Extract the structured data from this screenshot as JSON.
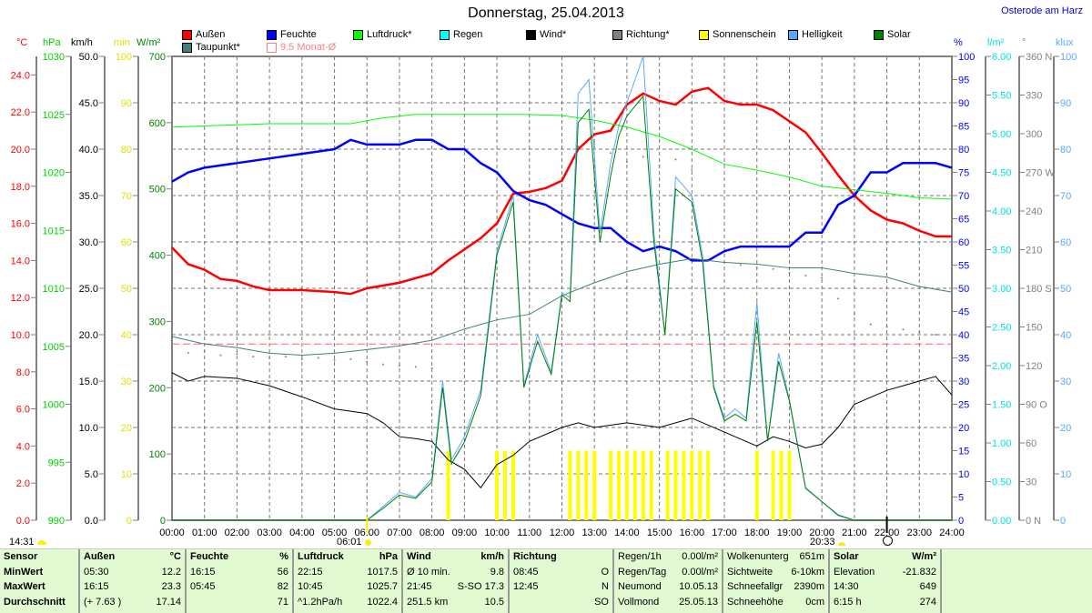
{
  "header": {
    "title": "Donnerstag, 25.04.2013",
    "location": "Osterode am Harz"
  },
  "legend": [
    {
      "label": "Außen",
      "color": "#ff0000"
    },
    {
      "label": "Feuchte",
      "color": "#0000ff"
    },
    {
      "label": "Luftdruck*",
      "color": "#00ff00"
    },
    {
      "label": "Regen",
      "color": "#00ffff"
    },
    {
      "label": "Wind*",
      "color": "#000000"
    },
    {
      "label": "Richtung*",
      "color": "#808080"
    },
    {
      "label": "Sonnenschein",
      "color": "#ffff00"
    },
    {
      "label": "Helligkeit",
      "color": "#55aaff"
    },
    {
      "label": "Solar",
      "color": "#008000"
    },
    {
      "label": "Taupunkt*",
      "color": "#408080"
    },
    {
      "label": "9.5 Monat-Ø",
      "color": "#ff8080"
    }
  ],
  "markers": {
    "now": "14:31",
    "sunrise": "06:01",
    "sunset": "20:33"
  },
  "chart_data": {
    "type": "line",
    "title": "Donnerstag, 25.04.2013",
    "xlabel": "",
    "xrange": [
      0,
      24
    ],
    "xticks": [
      "00:00",
      "01:00",
      "02:00",
      "03:00",
      "04:00",
      "05:00",
      "06:00",
      "07:00",
      "08:00",
      "09:00",
      "10:00",
      "11:00",
      "12:00",
      "13:00",
      "14:00",
      "15:00",
      "16:00",
      "17:00",
      "18:00",
      "19:00",
      "20:00",
      "21:00",
      "22:00",
      "23:00",
      "24:00"
    ],
    "grid": true,
    "axes": {
      "temp": {
        "unit": "°C",
        "range": [
          0,
          25
        ],
        "step": 2,
        "max_tick": 24,
        "decimals": 1,
        "color": "#ff0000",
        "side": "left"
      },
      "press": {
        "unit": "hPa",
        "range": [
          990,
          1030
        ],
        "step": 5,
        "max_tick": 1030,
        "decimals": 0,
        "color": "#00d000",
        "side": "left"
      },
      "wind": {
        "unit": "km/h",
        "range": [
          0,
          50
        ],
        "step": 5,
        "max_tick": 50,
        "decimals": 1,
        "color": "#000000",
        "side": "left"
      },
      "sun": {
        "unit": "min",
        "range": [
          0,
          100
        ],
        "step": 10,
        "max_tick": 100,
        "decimals": 0,
        "color": "#e0e000",
        "side": "left"
      },
      "solar": {
        "unit": "W/m²",
        "range": [
          0,
          700
        ],
        "step": 100,
        "max_tick": 700,
        "decimals": 0,
        "color": "#008000",
        "side": "left"
      },
      "hum": {
        "unit": "%",
        "range": [
          0,
          100
        ],
        "step": 5,
        "max_tick": 100,
        "decimals": 0,
        "color": "#0000ff",
        "side": "right"
      },
      "rain": {
        "unit": "l/m²",
        "range": [
          0,
          6
        ],
        "step": 0.5,
        "max_tick": 6,
        "decimals": 2,
        "color": "#00e0e0",
        "side": "right"
      },
      "dir": {
        "unit": "°",
        "range": [
          0,
          360
        ],
        "step": 30,
        "max_tick": 360,
        "decimals": 0,
        "color": "#808080",
        "side": "right",
        "compass": {
          "0": "N",
          "90": "O",
          "180": "S",
          "270": "W",
          "360": "N"
        }
      },
      "lux": {
        "unit": "klux",
        "range": [
          0,
          100
        ],
        "step": 10,
        "max_tick": 100,
        "decimals": 0,
        "color": "#55aaff",
        "side": "right"
      }
    },
    "monthly_avg_temp": 9.5,
    "series": [
      {
        "name": "Außen",
        "axis": "temp",
        "color": "#ff0000",
        "width": 2.5,
        "x": [
          0,
          0.5,
          1,
          1.5,
          2,
          2.5,
          3,
          4,
          5,
          5.5,
          6,
          7,
          8,
          8.5,
          9,
          9.5,
          10,
          10.5,
          11,
          11.5,
          12,
          12.5,
          13,
          13.5,
          14,
          14.5,
          15,
          15.5,
          16,
          16.5,
          17,
          17.5,
          18,
          18.5,
          19,
          19.5,
          20,
          20.5,
          21,
          21.5,
          22,
          22.5,
          23,
          23.5,
          24
        ],
        "y": [
          14.7,
          13.8,
          13.5,
          13.0,
          12.9,
          12.6,
          12.4,
          12.4,
          12.3,
          12.2,
          12.5,
          12.8,
          13.3,
          14.0,
          14.6,
          15.2,
          16.0,
          17.6,
          17.7,
          17.9,
          18.3,
          20.0,
          20.8,
          21.0,
          22.4,
          23.0,
          22.6,
          22.4,
          23.1,
          23.3,
          22.6,
          22.4,
          22.4,
          22.1,
          21.5,
          20.9,
          19.8,
          18.6,
          17.5,
          16.7,
          16.2,
          16.0,
          15.6,
          15.3,
          15.3
        ]
      },
      {
        "name": "Feuchte",
        "axis": "hum",
        "color": "#0000ff",
        "width": 2.5,
        "x": [
          0,
          0.5,
          1,
          2,
          3,
          4,
          5,
          5.5,
          6,
          7,
          7.5,
          8,
          8.5,
          9,
          9.5,
          10,
          10.5,
          11,
          11.5,
          12,
          12.5,
          13,
          13.5,
          14,
          14.5,
          15,
          15.5,
          16,
          16.5,
          17,
          17.5,
          18,
          19,
          19.5,
          20,
          20.5,
          21,
          21.5,
          22,
          22.5,
          23,
          23.5,
          24
        ],
        "y": [
          73,
          75,
          76,
          77,
          78,
          79,
          80,
          82,
          81,
          81,
          82,
          82,
          80,
          80,
          77,
          75,
          71,
          69,
          68,
          66,
          64,
          63,
          63,
          60,
          58,
          59,
          58,
          56,
          56,
          58,
          59,
          59,
          59,
          62,
          62,
          68,
          70,
          75,
          75,
          77,
          77,
          77,
          76
        ]
      },
      {
        "name": "Luftdruck*",
        "axis": "press",
        "color": "#00ff00",
        "width": 1,
        "x": [
          0,
          3,
          5.5,
          6.5,
          7.5,
          8.5,
          10.75,
          12,
          13,
          14,
          15,
          16,
          17,
          18,
          19,
          20,
          21,
          22,
          23,
          24
        ],
        "y": [
          1023.9,
          1024.2,
          1024.2,
          1024.7,
          1025.0,
          1025.0,
          1025.0,
          1024.9,
          1024.5,
          1023.9,
          1023.1,
          1022.0,
          1020.7,
          1020.2,
          1019.6,
          1018.8,
          1018.5,
          1018.2,
          1017.8,
          1017.7
        ]
      },
      {
        "name": "Taupunkt*",
        "axis": "temp",
        "color": "#408080",
        "width": 1,
        "x": [
          0,
          1,
          2,
          3,
          4,
          5,
          6,
          7,
          8,
          9,
          10,
          11,
          12,
          13,
          14,
          15,
          16,
          17,
          18,
          19,
          20,
          21,
          22,
          23,
          24
        ],
        "y": [
          9.9,
          9.5,
          9.3,
          9.0,
          8.9,
          9.0,
          9.2,
          9.4,
          9.7,
          10.3,
          10.8,
          11.1,
          12.1,
          12.8,
          13.4,
          13.8,
          14.1,
          13.9,
          13.8,
          13.6,
          13.6,
          13.3,
          13.1,
          12.6,
          12.3
        ]
      },
      {
        "name": "Wind*",
        "axis": "wind",
        "color": "#000000",
        "width": 1,
        "x": [
          0,
          0.5,
          1,
          2,
          3,
          4,
          5,
          6,
          6.5,
          7,
          7.5,
          8,
          8.5,
          9,
          9.5,
          10,
          10.5,
          11,
          12,
          12.5,
          13,
          14,
          15,
          16,
          17,
          18,
          18.5,
          19,
          19.5,
          20,
          20.5,
          21,
          22,
          22.5,
          23,
          23.5,
          24
        ],
        "y": [
          15.9,
          15.0,
          15.5,
          15.3,
          14.5,
          13.3,
          12.0,
          11.5,
          10.5,
          9.0,
          8.8,
          8.5,
          6.5,
          5.5,
          3.5,
          6.0,
          7.0,
          8.5,
          10.0,
          10.5,
          10.0,
          10.5,
          10.0,
          11.0,
          9.5,
          8.0,
          9.0,
          8.5,
          7.8,
          8.2,
          10.0,
          12.5,
          14.0,
          14.5,
          15.0,
          15.5,
          13.5
        ]
      },
      {
        "name": "Helligkeit",
        "axis": "lux",
        "color": "#55aaff",
        "width": 1,
        "x": [
          0,
          6,
          6.5,
          7,
          7.5,
          8,
          8.33,
          8.6,
          9,
          9.5,
          10,
          10.5,
          10.83,
          11.25,
          11.67,
          12,
          12.25,
          12.5,
          12.83,
          13.17,
          13.5,
          13.75,
          14,
          14.5,
          14.83,
          15.17,
          15.5,
          16,
          16.33,
          16.67,
          17,
          17.33,
          17.67,
          18,
          18.33,
          18.67,
          19,
          19.5,
          20,
          20.5,
          21,
          24
        ],
        "y": [
          0,
          0,
          3,
          6,
          5,
          9,
          30,
          13,
          18,
          28,
          58,
          70,
          29,
          40,
          32,
          49,
          48,
          92,
          95,
          62,
          77,
          85,
          90,
          100,
          62,
          40,
          74,
          70,
          57,
          29,
          22,
          24,
          22,
          47,
          17,
          36,
          26,
          7,
          4,
          1,
          0,
          0
        ]
      },
      {
        "name": "Solar",
        "axis": "solar",
        "color": "#008000",
        "width": 1,
        "x": [
          0,
          6,
          6.5,
          7,
          7.5,
          8,
          8.33,
          8.6,
          9,
          9.5,
          10,
          10.5,
          10.83,
          11.25,
          11.67,
          12,
          12.25,
          12.5,
          12.83,
          13.17,
          13.5,
          13.75,
          14,
          14.5,
          14.83,
          15.17,
          15.5,
          16,
          16.33,
          16.67,
          17,
          17.33,
          17.67,
          18,
          18.33,
          18.67,
          19,
          19.5,
          20,
          20.5,
          21,
          24
        ],
        "y": [
          0,
          0,
          18,
          38,
          33,
          58,
          200,
          85,
          118,
          188,
          400,
          480,
          200,
          270,
          220,
          340,
          330,
          600,
          620,
          420,
          520,
          580,
          610,
          640,
          420,
          280,
          500,
          480,
          390,
          200,
          150,
          160,
          150,
          300,
          120,
          240,
          180,
          48,
          28,
          8,
          0,
          0
        ]
      }
    ],
    "direction": {
      "name": "Richtung*",
      "axis": "dir",
      "color": "#808080",
      "x": [
        0,
        0.5,
        1,
        1.5,
        2,
        2.5,
        3,
        3.5,
        4,
        4.5,
        5,
        5.5,
        6,
        6.5,
        7,
        7.5,
        8,
        12.5,
        13,
        13.5,
        14,
        14.5,
        15,
        15.5,
        16,
        17,
        17.5,
        18,
        18.5,
        19,
        19.5,
        20,
        20.5,
        21,
        21.5,
        22,
        22.5,
        23,
        23.5,
        24
      ],
      "y": [
        133,
        130,
        131,
        128,
        129,
        127,
        126,
        127,
        125,
        126,
        124,
        125,
        123,
        121,
        120,
        119,
        118,
        290,
        292,
        285,
        278,
        282,
        275,
        280,
        272,
        200,
        198,
        196,
        195,
        192,
        190,
        188,
        172,
        160,
        152,
        150,
        148,
        146,
        144,
        143
      ]
    },
    "sunshine": {
      "name": "Sonnenschein",
      "axis": "sun",
      "color": "#ffff00",
      "minutes": 15,
      "x": [
        8.5,
        10.0,
        10.25,
        10.5,
        12.25,
        12.5,
        12.75,
        13.0,
        13.5,
        13.75,
        14.0,
        14.25,
        14.5,
        14.75,
        15.25,
        15.5,
        15.75,
        16.0,
        16.25,
        16.5,
        18.0,
        18.5,
        18.75,
        19.0
      ]
    }
  },
  "table": {
    "cols": [
      {
        "h": [
          "Sensor",
          ""
        ],
        "r": [
          [
            "MinWert",
            ""
          ],
          [
            "MaxWert",
            ""
          ],
          [
            "Durchschnitt",
            ""
          ]
        ],
        "bold": true
      },
      {
        "h": [
          "Außen",
          "°C"
        ],
        "r": [
          [
            "05:30",
            "12.2"
          ],
          [
            "16:15",
            "23.3"
          ],
          [
            "(+ 7.63 )",
            "17.14"
          ]
        ]
      },
      {
        "h": [
          "Feuchte",
          "%"
        ],
        "r": [
          [
            "16:15",
            "56"
          ],
          [
            "05:45",
            "82"
          ],
          [
            "",
            "71"
          ]
        ]
      },
      {
        "h": [
          "Luftdruck",
          "hPa"
        ],
        "r": [
          [
            "22:15",
            "1017.5"
          ],
          [
            "10:45",
            "1025.7"
          ],
          [
            "^1.2hPa/h",
            "1022.4"
          ]
        ]
      },
      {
        "h": [
          "Wind",
          "km/h"
        ],
        "r": [
          [
            "Ø 10 min.",
            "9.8"
          ],
          [
            "21:45",
            "S-SO 17.3"
          ],
          [
            "251.5 km",
            "10.5"
          ]
        ]
      },
      {
        "h": [
          "Richtung",
          ""
        ],
        "r": [
          [
            "08:45",
            "O"
          ],
          [
            "12:45",
            "N"
          ],
          [
            "",
            "SO"
          ]
        ]
      },
      {
        "h": [
          "Regen/1h",
          "0.00l/m²"
        ],
        "r": [
          [
            "Regen/Tag",
            "0.00l/m²"
          ],
          [
            "Neumond",
            "10.05.13"
          ],
          [
            "Vollmond",
            "25.05.13"
          ]
        ],
        "plain": true
      },
      {
        "h": [
          "Wolkenunterg",
          "651m"
        ],
        "r": [
          [
            "Sichtweite",
            "6-10km"
          ],
          [
            "Schneefallgr",
            "2390m"
          ],
          [
            "Schneehöhe",
            "0cm"
          ]
        ],
        "plain": true
      },
      {
        "h": [
          "Solar",
          "W/m²"
        ],
        "r": [
          [
            "Elevation",
            "-21.832"
          ],
          [
            "14:30",
            "649"
          ],
          [
            "6:15 h",
            "274"
          ]
        ]
      }
    ]
  }
}
